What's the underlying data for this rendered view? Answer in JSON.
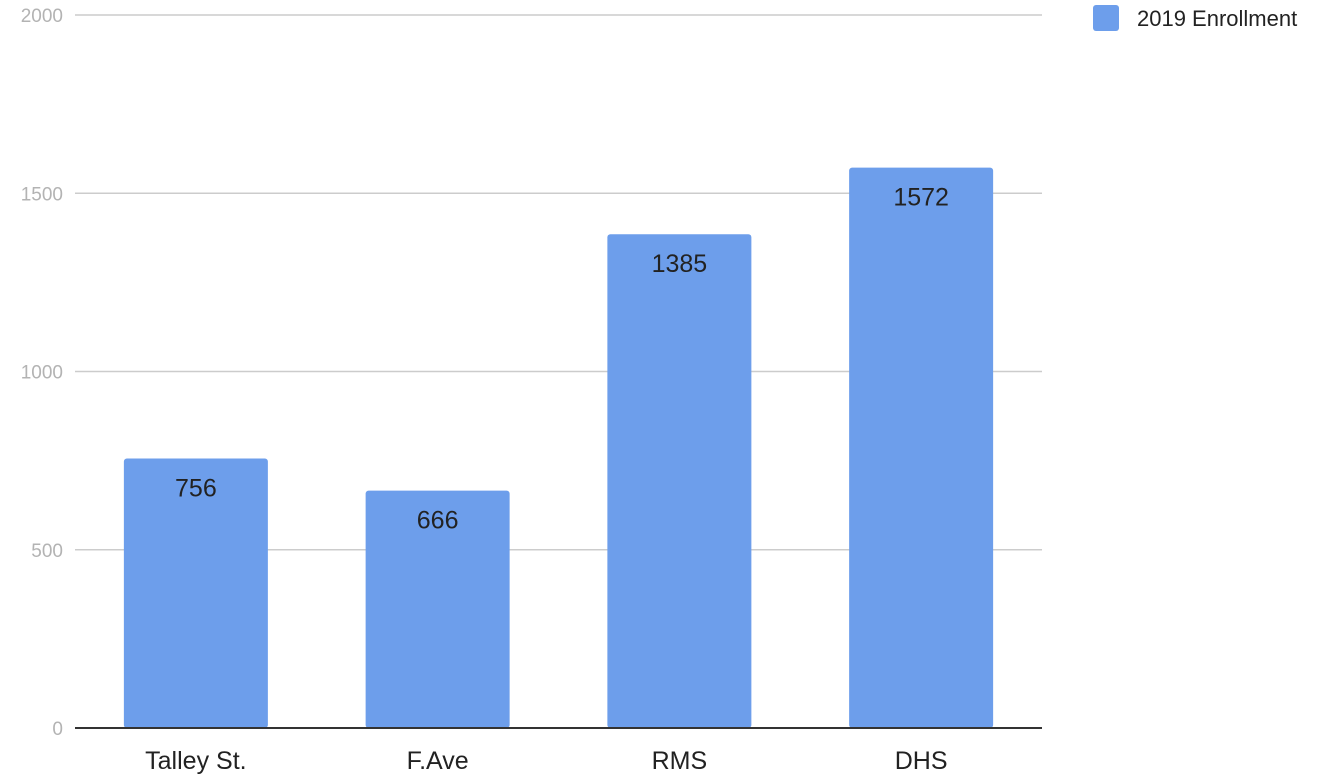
{
  "chart_data": {
    "type": "bar",
    "categories": [
      "Talley St.",
      "F.Ave",
      "RMS",
      "DHS"
    ],
    "series": [
      {
        "name": "2019 Enrollment",
        "values": [
          756,
          666,
          1385,
          1572
        ],
        "color": "#6d9eeb"
      }
    ],
    "data_labels": [
      "756",
      "666",
      "1385",
      "1572"
    ],
    "y_ticks": [
      "0",
      "500",
      "1000",
      "1500",
      "2000"
    ],
    "ylim": [
      0,
      2000
    ],
    "grid": true,
    "legend_position": "top-right",
    "title": "",
    "xlabel": "",
    "ylabel": ""
  }
}
